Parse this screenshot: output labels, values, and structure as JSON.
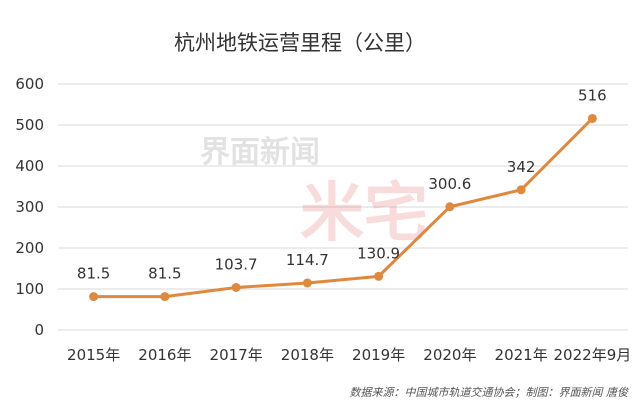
{
  "watermark": {
    "brand_text": "界面新闻",
    "mark_text": "米宅"
  },
  "footer": {
    "source_text": "数据来源：中国城市轨道交通协会；制图：界面新闻 唐俊"
  },
  "chart_data": {
    "type": "line",
    "title": "杭州地铁运营里程（公里）",
    "xlabel": "",
    "ylabel": "",
    "categories": [
      "2015年",
      "2016年",
      "2017年",
      "2018年",
      "2019年",
      "2020年",
      "2021年",
      "2022年9月"
    ],
    "series": [
      {
        "values": [
          81.5,
          81.5,
          103.7,
          114.7,
          130.9,
          300.6,
          342,
          516
        ],
        "labels": [
          "81.5",
          "81.5",
          "103.7",
          "114.7",
          "130.9",
          "300.6",
          "342",
          "516"
        ],
        "color": "#e0893e"
      }
    ],
    "ylim": [
      0,
      600
    ],
    "yticks": [
      0,
      100,
      200,
      300,
      400,
      500,
      600
    ],
    "grid": true,
    "legend": "none",
    "colors": {
      "line": "#e0893e",
      "grid": "#d9d9d9",
      "text": "#333333"
    }
  }
}
